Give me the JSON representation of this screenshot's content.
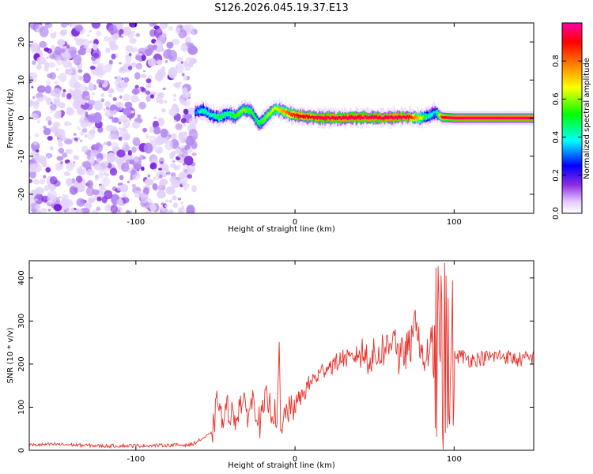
{
  "figure_title": "S126.2026.045.19.37.E13",
  "chart_data": [
    {
      "type": "heatmap",
      "name": "spectrogram",
      "title": "S126.2026.045.19.37.E13",
      "xlabel": "Height of straight line (km)",
      "ylabel": "Frequency (Hz)",
      "xlim": [
        -167,
        150
      ],
      "ylim": [
        -25,
        25
      ],
      "xticks": [
        -100,
        0,
        100
      ],
      "yticks": [
        -20,
        -10,
        0,
        10,
        20
      ],
      "colorbar": {
        "label": "Normalized spectral amplitude",
        "range": [
          0.0,
          1.0
        ],
        "ticks": [
          "0.0",
          "0.2",
          "0.4",
          "0.6",
          "0.8"
        ],
        "colormap": [
          "#ffffff",
          "#e6ccff",
          "#8a2be2",
          "#0000ff",
          "#00ffff",
          "#00ff00",
          "#ffff00",
          "#ff8000",
          "#ff0000",
          "#ff00aa"
        ]
      },
      "noise_region_x": [
        -167,
        -63
      ],
      "ridge": {
        "x": [
          -63,
          -58,
          -53,
          -48,
          -43,
          -38,
          -33,
          -28,
          -23,
          -18,
          -13,
          -8,
          -3,
          2,
          8,
          15,
          25,
          40,
          55,
          70,
          78,
          83,
          88,
          92,
          100,
          120,
          150
        ],
        "frequency_hz": [
          1.5,
          2.0,
          0.8,
          0.2,
          1.2,
          0.5,
          2.2,
          1.8,
          -1.5,
          0.5,
          2.5,
          1.8,
          1.0,
          0.6,
          0.3,
          0.1,
          0.0,
          0.2,
          0.1,
          0.3,
          0.0,
          0.5,
          1.5,
          0.2,
          0.0,
          0.0,
          0.0
        ],
        "amplitude": [
          0.3,
          0.45,
          0.4,
          0.5,
          0.45,
          0.55,
          0.6,
          0.55,
          0.5,
          0.6,
          0.65,
          0.75,
          0.85,
          0.9,
          0.9,
          0.95,
          0.95,
          0.95,
          0.95,
          0.95,
          0.7,
          0.45,
          0.35,
          0.9,
          0.97,
          0.97,
          0.97
        ]
      }
    },
    {
      "type": "line",
      "name": "snr",
      "xlabel": "Height of straight line (km)",
      "ylabel": "SNR (10 * v/v)",
      "xlim": [
        -167,
        150
      ],
      "ylim": [
        0,
        440
      ],
      "xticks": [
        -100,
        0,
        100
      ],
      "yticks": [
        0,
        100,
        200,
        300,
        400
      ],
      "color": "#e8312a",
      "series": [
        {
          "name": "SNR",
          "x": [
            -167,
            -150,
            -120,
            -90,
            -65,
            -52,
            -48,
            -46,
            -42,
            -38,
            -34,
            -30,
            -26,
            -22,
            -18,
            -14,
            -11,
            -10,
            -9,
            -6,
            -3,
            0,
            5,
            10,
            15,
            20,
            25,
            30,
            35,
            40,
            45,
            50,
            55,
            60,
            62,
            65,
            70,
            74,
            76,
            80,
            84,
            88,
            89,
            90,
            91,
            92,
            93,
            94,
            95,
            96,
            97,
            98,
            99,
            100,
            104,
            110,
            120,
            130,
            140,
            150
          ],
          "values": [
            12,
            14,
            10,
            11,
            13,
            40,
            130,
            60,
            100,
            70,
            115,
            85,
            120,
            60,
            120,
            90,
            80,
            250,
            20,
            95,
            90,
            105,
            130,
            160,
            175,
            195,
            200,
            215,
            210,
            225,
            220,
            215,
            235,
            240,
            300,
            210,
            230,
            250,
            320,
            200,
            230,
            180,
            40,
            350,
            120,
            440,
            30,
            380,
            260,
            400,
            80,
            240,
            210,
            215,
            220,
            210,
            215,
            220,
            210,
            215
          ]
        }
      ]
    }
  ]
}
